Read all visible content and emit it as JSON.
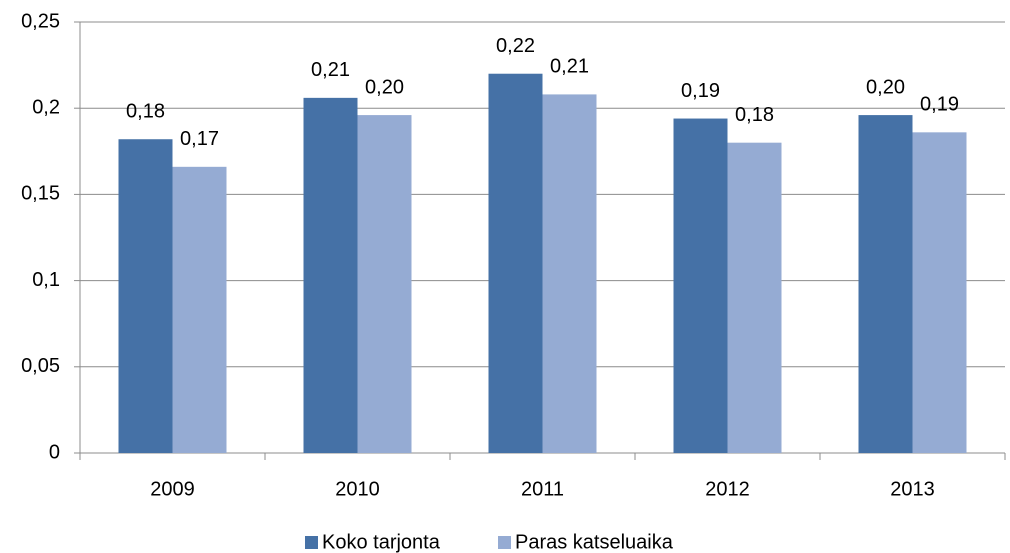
{
  "chart_data": {
    "type": "bar",
    "categories": [
      "2009",
      "2010",
      "2011",
      "2012",
      "2013"
    ],
    "series": [
      {
        "name": "Koko tarjonta",
        "color": "#4571a6",
        "values": [
          0.182,
          0.206,
          0.22,
          0.194,
          0.196
        ],
        "value_labels": [
          "0,18",
          "0,21",
          "0,22",
          "0,19",
          "0,20"
        ]
      },
      {
        "name": "Paras katseluaika",
        "color": "#95abd3",
        "values": [
          0.166,
          0.196,
          0.208,
          0.18,
          0.186
        ],
        "value_labels": [
          "0,17",
          "0,20",
          "0,21",
          "0,18",
          "0,19"
        ]
      }
    ],
    "ylim": [
      0,
      0.25
    ],
    "yticks": [
      0,
      {
        "value": 0.05,
        "label": "0,05"
      },
      {
        "value": 0.1,
        "label": "0,1"
      },
      {
        "value": 0.15,
        "label": "0,15"
      },
      {
        "value": 0.2,
        "label": "0,2"
      },
      {
        "value": 0.25,
        "label": "0,25"
      }
    ],
    "grid": true,
    "legend": "bottom"
  }
}
